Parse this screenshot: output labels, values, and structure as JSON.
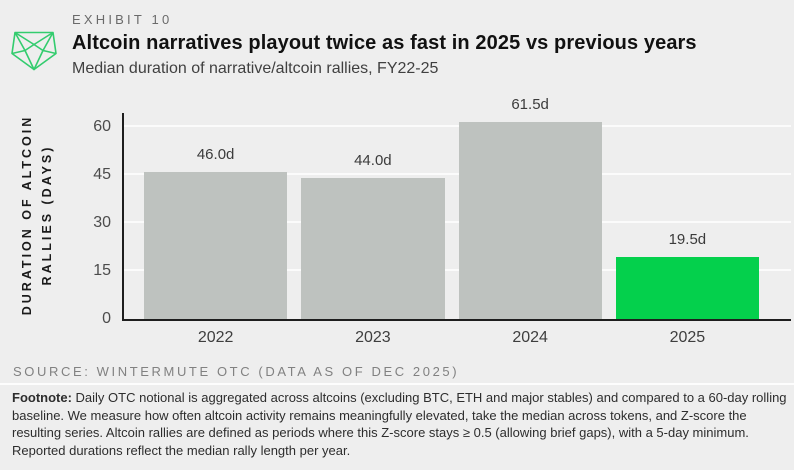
{
  "header": {
    "exhibit": "EXHIBIT 10",
    "title": "Altcoin narratives playout twice as fast in 2025 vs previous years",
    "subtitle": "Median duration of narrative/altcoin rallies, FY22-25"
  },
  "chart": {
    "ylabel_lines": [
      "DURATION OF ALTCOIN",
      "RALLIES (DAYS)"
    ]
  },
  "chart_data": {
    "type": "bar",
    "categories": [
      "2022",
      "2023",
      "2024",
      "2025"
    ],
    "values": [
      46.0,
      44.0,
      61.5,
      19.5
    ],
    "bar_labels": [
      "46.0d",
      "44.0d",
      "61.5d",
      "19.5d"
    ],
    "colors": [
      "#bec2bf",
      "#bec2bf",
      "#bec2bf",
      "#04d04c"
    ],
    "title": "Altcoin narratives playout twice as fast in 2025 vs previous years",
    "subtitle": "Median duration of narrative/altcoin rallies, FY22-25",
    "xlabel": "",
    "ylabel": "DURATION OF ALTCOIN RALLIES (DAYS)",
    "yticks": [
      0,
      15,
      30,
      45,
      60
    ],
    "ylim": [
      0,
      64.4
    ],
    "grid": "horizontal",
    "legend": "none"
  },
  "footer": {
    "source": "SOURCE: WINTERMUTE OTC (DATA AS OF DEC 2025)",
    "footnote_label": "Footnote:",
    "footnote_text": " Daily OTC notional is aggregated across altcoins (excluding BTC, ETH and major stables) and compared to a 60-day rolling baseline. We measure how often altcoin activity remains meaningfully elevated, take the median across tokens, and Z-score the resulting series. Altcoin rallies are defined as periods where this Z-score stays ≥ 0.5 (allowing brief gaps), with a 5-day minimum. Reported durations reflect the median rally length per year."
  },
  "colors": {
    "accent_green": "#04d04c",
    "logo_green": "#33cc6e",
    "bar_gray": "#bec2bf",
    "background": "#eeeeee",
    "axis": "#1e1e1e"
  }
}
